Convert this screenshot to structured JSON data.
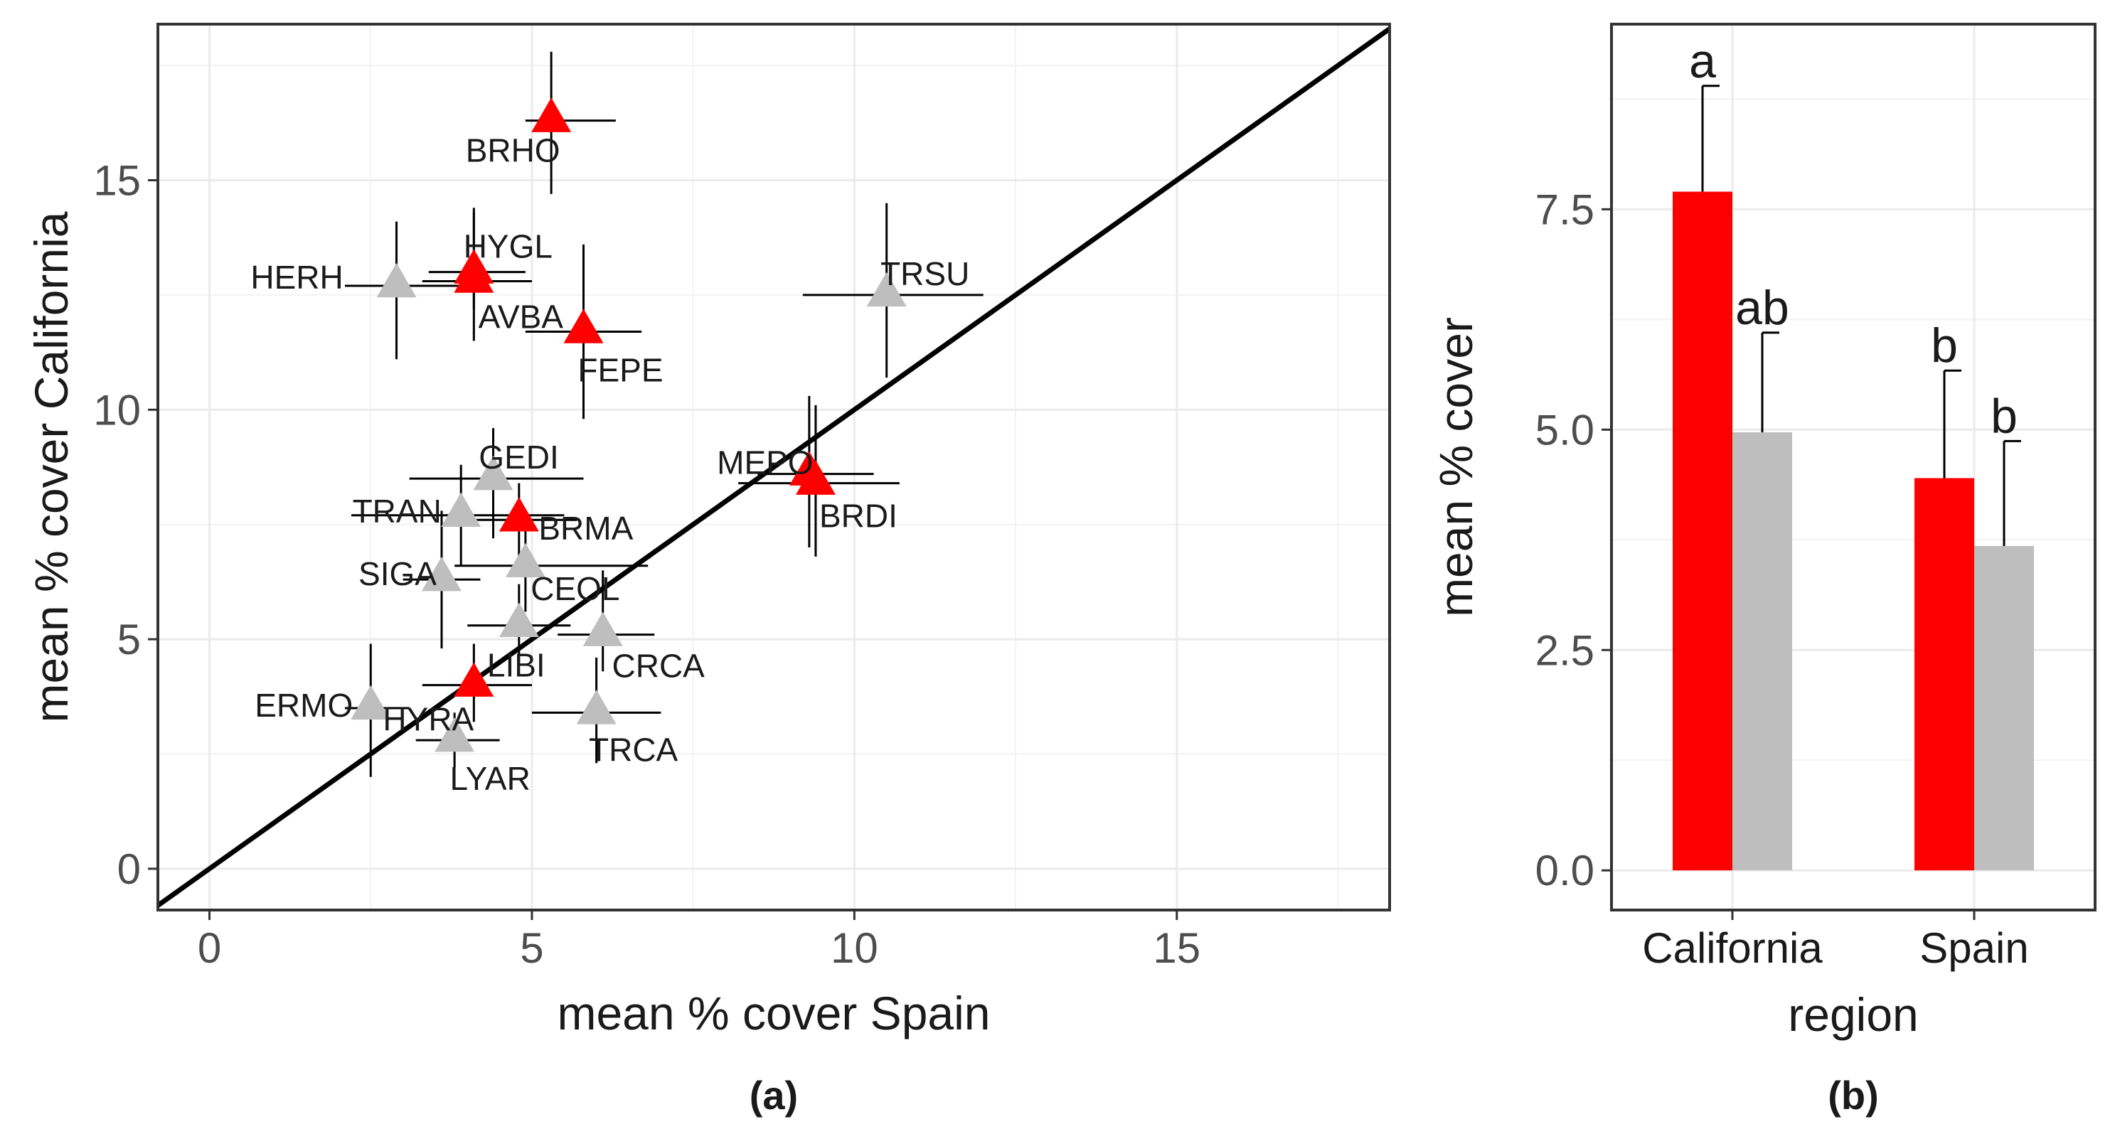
{
  "chart_data": [
    {
      "type": "scatter",
      "panel_label": "(a)",
      "xlabel": "mean % cover Spain",
      "ylabel": "mean % cover California",
      "xlim": [
        -0.8,
        18.3
      ],
      "ylim": [
        -0.9,
        18.4
      ],
      "x_ticks": [
        0,
        5,
        10,
        15
      ],
      "y_ticks": [
        0,
        5,
        10,
        15
      ],
      "grid": true,
      "reference_line": {
        "description": "1:1 line",
        "slope": 1,
        "intercept": 0
      },
      "marker": "triangle",
      "group_colors": {
        "red": "#ff0000",
        "gray": "#bebebe"
      },
      "points": [
        {
          "label": "BRHO",
          "x": 5.3,
          "y": 16.3,
          "x_err": [
            4.9,
            6.3
          ],
          "y_err": [
            14.7,
            17.8
          ],
          "group": "red"
        },
        {
          "label": "HYGL",
          "x": 4.1,
          "y": 13.0,
          "x_err": [
            3.4,
            4.9
          ],
          "y_err": [
            12.2,
            14.4
          ],
          "group": "red"
        },
        {
          "label": "HERH",
          "x": 2.9,
          "y": 12.7,
          "x_err": [
            2.1,
            4.0
          ],
          "y_err": [
            11.1,
            14.1
          ],
          "group": "gray"
        },
        {
          "label": "AVBA",
          "x": 4.1,
          "y": 12.8,
          "x_err": [
            3.3,
            5.0
          ],
          "y_err": [
            11.5,
            14.3
          ],
          "group": "red"
        },
        {
          "label": "FEPE",
          "x": 5.8,
          "y": 11.7,
          "x_err": [
            4.9,
            6.7
          ],
          "y_err": [
            9.8,
            13.6
          ],
          "group": "red"
        },
        {
          "label": "TRSU",
          "x": 10.5,
          "y": 12.5,
          "x_err": [
            9.2,
            12.0
          ],
          "y_err": [
            10.7,
            14.5
          ],
          "group": "gray"
        },
        {
          "label": "MEPO",
          "x": 9.3,
          "y": 8.6,
          "x_err": [
            8.5,
            10.3
          ],
          "y_err": [
            7.0,
            10.3
          ],
          "group": "red"
        },
        {
          "label": "BRDI",
          "x": 9.4,
          "y": 8.4,
          "x_err": [
            8.2,
            10.7
          ],
          "y_err": [
            6.8,
            10.1
          ],
          "group": "red"
        },
        {
          "label": "GEDI",
          "x": 4.4,
          "y": 8.5,
          "x_err": [
            3.1,
            5.8
          ],
          "y_err": [
            7.2,
            9.6
          ],
          "group": "gray"
        },
        {
          "label": "TRAN",
          "x": 3.9,
          "y": 7.7,
          "x_err": [
            2.2,
            5.5
          ],
          "y_err": [
            6.6,
            8.8
          ],
          "group": "gray"
        },
        {
          "label": "BRMA",
          "x": 4.8,
          "y": 7.6,
          "x_err": [
            3.9,
            5.7
          ],
          "y_err": [
            6.7,
            8.4
          ],
          "group": "red"
        },
        {
          "label": "SIGA",
          "x": 3.6,
          "y": 6.3,
          "x_err": [
            3.0,
            4.2
          ],
          "y_err": [
            4.8,
            7.8
          ],
          "group": "gray"
        },
        {
          "label": "CEOL",
          "x": 4.9,
          "y": 6.6,
          "x_err": [
            3.8,
            6.8
          ],
          "y_err": [
            5.6,
            7.6
          ],
          "group": "gray"
        },
        {
          "label": "LIBI",
          "x": 4.8,
          "y": 5.3,
          "x_err": [
            4.0,
            5.6
          ],
          "y_err": [
            4.5,
            6.2
          ],
          "group": "gray"
        },
        {
          "label": "CRCA",
          "x": 6.1,
          "y": 5.1,
          "x_err": [
            5.4,
            6.9
          ],
          "y_err": [
            4.3,
            6.5
          ],
          "group": "gray"
        },
        {
          "label": "ERMO",
          "x": 2.5,
          "y": 3.5,
          "x_err": [
            2.1,
            3.1
          ],
          "y_err": [
            2.0,
            4.9
          ],
          "group": "gray"
        },
        {
          "label": "HYRA",
          "x": 4.1,
          "y": 4.0,
          "x_err": [
            3.3,
            5.0
          ],
          "y_err": [
            3.2,
            4.9
          ],
          "group": "red"
        },
        {
          "label": "TRCA",
          "x": 6.0,
          "y": 3.4,
          "x_err": [
            5.0,
            7.0
          ],
          "y_err": [
            2.3,
            4.6
          ],
          "group": "gray"
        },
        {
          "label": "LYAR",
          "x": 3.8,
          "y": 2.8,
          "x_err": [
            3.2,
            4.5
          ],
          "y_err": [
            2.2,
            3.4
          ],
          "group": "gray"
        }
      ]
    },
    {
      "type": "bar",
      "panel_label": "(b)",
      "xlabel": "region",
      "ylabel": "mean % cover",
      "categories": [
        "California",
        "Spain"
      ],
      "ylim": [
        -0.45,
        9.6
      ],
      "y_ticks": [
        0.0,
        2.5,
        5.0,
        7.5
      ],
      "y_tick_labels": [
        "0.0",
        "2.5",
        "5.0",
        "7.5"
      ],
      "grid": true,
      "series": [
        {
          "name": "red",
          "color": "#ff0000",
          "values": [
            7.7,
            4.45
          ],
          "upper_error": [
            8.9,
            5.67
          ],
          "letters": [
            "a",
            "b"
          ]
        },
        {
          "name": "gray",
          "color": "#bebebe",
          "values": [
            4.97,
            3.68
          ],
          "upper_error": [
            6.1,
            4.87
          ],
          "letters": [
            "ab",
            "b"
          ]
        }
      ]
    }
  ]
}
